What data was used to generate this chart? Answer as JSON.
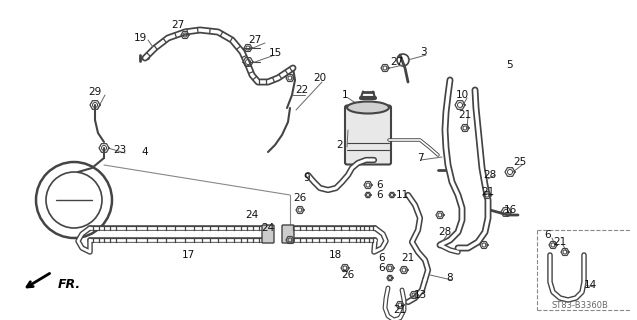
{
  "background_color": "#ffffff",
  "diagram_ref": "ST83-B3360B",
  "fr_label": "FR.",
  "line_color": "#444444",
  "text_color": "#111111",
  "font_size": 7.5,
  "fig_w": 6.37,
  "fig_h": 3.2,
  "dpi": 100
}
